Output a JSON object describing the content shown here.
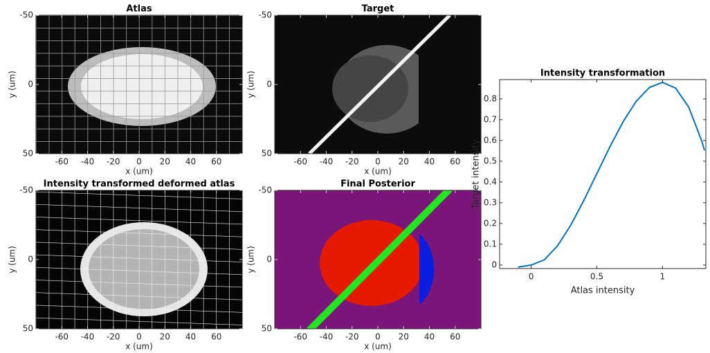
{
  "chart_data": [
    {
      "type": "image",
      "title": "Atlas",
      "x_label": "x (um)",
      "y_label": "y (um)",
      "xlim": [
        -80,
        80
      ],
      "xticks": [
        -60,
        -40,
        -20,
        0,
        20,
        40,
        60
      ],
      "ylim": [
        -50,
        50
      ],
      "yticks": [
        -50,
        0,
        50
      ],
      "y_reversed": true
    },
    {
      "type": "image",
      "title": "Target",
      "x_label": "x (um)",
      "y_label": "y (um)",
      "xlim": [
        -80,
        80
      ],
      "xticks": [
        -60,
        -40,
        -20,
        0,
        20,
        40,
        60
      ],
      "ylim": [
        -50,
        50
      ],
      "yticks": [
        -50,
        0,
        50
      ],
      "y_reversed": true
    },
    {
      "type": "image",
      "title": "Intensity transformed deformed atlas",
      "x_label": "x (um)",
      "y_label": "y (um)",
      "xlim": [
        -80,
        80
      ],
      "xticks": [
        -60,
        -40,
        -20,
        0,
        20,
        40,
        60
      ],
      "ylim": [
        -50,
        50
      ],
      "yticks": [
        -50,
        0,
        50
      ],
      "y_reversed": true
    },
    {
      "type": "image",
      "title": "Final Posterior",
      "x_label": "x (um)",
      "y_label": "y (um)",
      "xlim": [
        -80,
        80
      ],
      "xticks": [
        -60,
        -40,
        -20,
        0,
        20,
        40,
        60
      ],
      "ylim": [
        -50,
        50
      ],
      "yticks": [
        -50,
        0,
        50
      ],
      "y_reversed": true
    },
    {
      "type": "line",
      "title": "Intensity transformation",
      "x_label": "Atlas intensity",
      "y_label": "Target intensity",
      "x": [
        -0.1,
        0,
        0.1,
        0.2,
        0.3,
        0.4,
        0.5,
        0.6,
        0.7,
        0.8,
        0.9,
        1.0,
        1.1,
        1.2,
        1.3,
        1.32
      ],
      "values": [
        -0.01,
        0,
        0.025,
        0.092,
        0.19,
        0.31,
        0.44,
        0.57,
        0.69,
        0.789,
        0.855,
        0.88,
        0.852,
        0.76,
        0.595,
        0.552
      ],
      "color": "#0072bd",
      "xlim": [
        -0.24,
        1.33
      ],
      "xticks": [
        0,
        0.5,
        1
      ],
      "ylim": [
        -0.017,
        0.893
      ],
      "yticks": [
        0,
        0.1,
        0.2,
        0.3,
        0.4,
        0.5,
        0.6,
        0.7,
        0.8
      ],
      "y_reversed": false
    }
  ]
}
